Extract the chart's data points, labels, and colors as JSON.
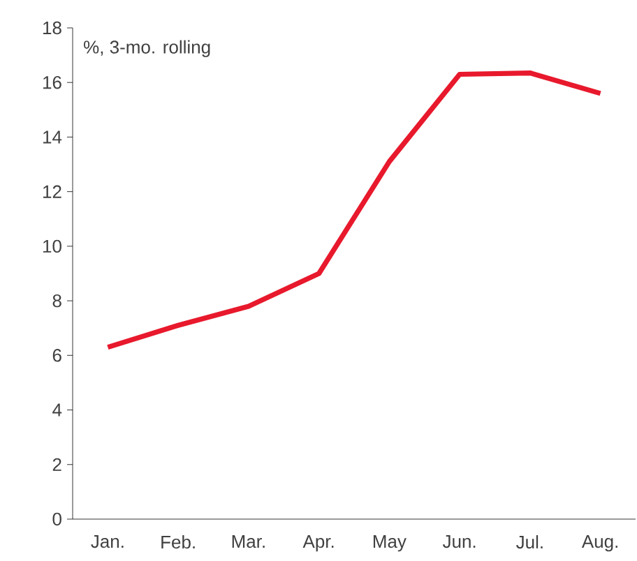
{
  "chart_data": {
    "type": "line",
    "ylabel": "%, 3-mo. rolling",
    "categories": [
      "Jan.",
      "Feb.",
      "Mar.",
      "Apr.",
      "May",
      "Jun.",
      "Jul.",
      "Aug."
    ],
    "series": [
      {
        "color": "#e8192c",
        "values": [
          6.3,
          7.1,
          7.8,
          9.0,
          13.1,
          16.3,
          16.35,
          15.6
        ]
      }
    ],
    "ylim": [
      0,
      18
    ],
    "yticks": [
      0,
      2,
      4,
      6,
      8,
      10,
      12,
      14,
      16,
      18
    ],
    "grid": false,
    "marker": "none",
    "line_style": "solid"
  }
}
